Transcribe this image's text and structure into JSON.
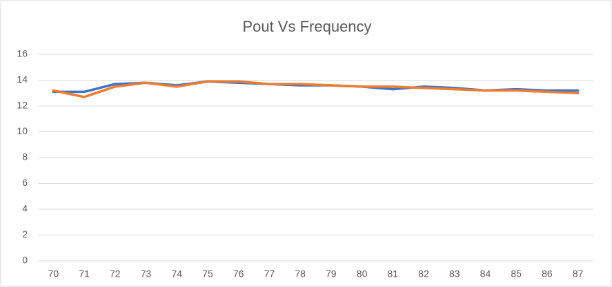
{
  "chart_data": {
    "type": "line",
    "title": "Pout Vs Frequency",
    "categories": [
      "70",
      "71",
      "72",
      "73",
      "74",
      "75",
      "76",
      "77",
      "78",
      "79",
      "80",
      "81",
      "82",
      "83",
      "84",
      "85",
      "86",
      "87"
    ],
    "series": [
      {
        "color": "#4472c4",
        "values": [
          13.1,
          13.1,
          13.7,
          13.8,
          13.6,
          13.9,
          13.8,
          13.7,
          13.6,
          13.6,
          13.5,
          13.3,
          13.5,
          13.4,
          13.2,
          13.3,
          13.2,
          13.2
        ]
      },
      {
        "color": "#ed7d31",
        "values": [
          13.2,
          12.7,
          13.5,
          13.8,
          13.5,
          13.9,
          13.9,
          13.7,
          13.7,
          13.6,
          13.5,
          13.5,
          13.4,
          13.3,
          13.2,
          13.2,
          13.1,
          13.0
        ]
      }
    ],
    "ylim": [
      0,
      16
    ],
    "yticks": [
      0,
      2,
      4,
      6,
      8,
      10,
      12,
      14,
      16
    ],
    "grid": true
  }
}
